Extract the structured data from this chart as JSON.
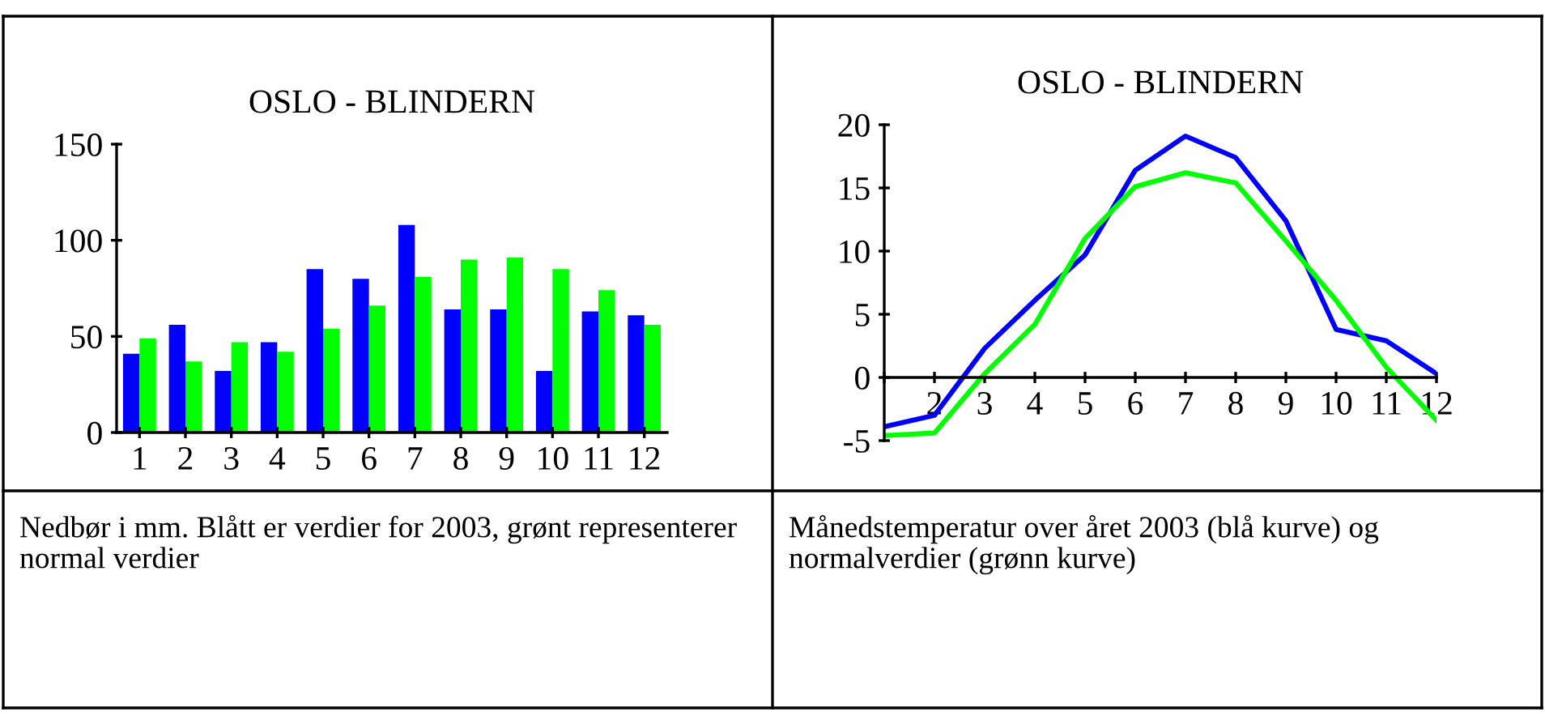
{
  "chart_data": [
    {
      "type": "bar",
      "title": "OSLO - BLINDERN",
      "categories": [
        "1",
        "2",
        "3",
        "4",
        "5",
        "6",
        "7",
        "8",
        "9",
        "10",
        "11",
        "12"
      ],
      "series": [
        {
          "color": "#0000ff",
          "values": [
            41,
            56,
            32,
            47,
            85,
            80,
            108,
            64,
            64,
            32,
            63,
            61
          ]
        },
        {
          "color": "#00ff00",
          "values": [
            49,
            37,
            47,
            42,
            54,
            66,
            81,
            90,
            91,
            85,
            74,
            56
          ]
        }
      ],
      "ylim": [
        0,
        150
      ],
      "yticks": [
        0,
        50,
        100,
        150
      ],
      "grid": false,
      "annotations": [
        "Nedbør i mm. Blått er verdier for 2003, grønt representerer normal verdier"
      ]
    },
    {
      "type": "line",
      "title": "OSLO - BLINDERN",
      "x": [
        1,
        2,
        3,
        4,
        5,
        6,
        7,
        8,
        9,
        10,
        11,
        12
      ],
      "series": [
        {
          "color": "#0000ff",
          "values": [
            -3.9,
            -3.0,
            2.3,
            6.1,
            9.7,
            16.4,
            19.1,
            17.4,
            12.4,
            3.8,
            2.9,
            0.3
          ]
        },
        {
          "color": "#00ff00",
          "values": [
            -4.6,
            -4.4,
            0.3,
            4.2,
            11.0,
            15.1,
            16.2,
            15.4,
            10.8,
            6.1,
            0.8,
            -3.4
          ]
        }
      ],
      "xlim": [
        1,
        12
      ],
      "xticks": [
        {
          "value": 1,
          "label": null
        },
        2,
        3,
        4,
        5,
        6,
        7,
        8,
        9,
        10,
        11,
        12
      ],
      "ylim": [
        -5,
        20
      ],
      "yticks": [
        -5,
        0,
        5,
        10,
        15,
        20
      ],
      "grid": false,
      "annotations": [
        "Månedstemperatur over året 2003 (blå kurve) og normalverdier (grønn kurve)"
      ]
    }
  ]
}
